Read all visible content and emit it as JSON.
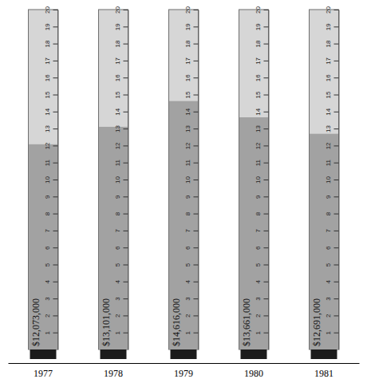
{
  "chart_data": {
    "type": "bar",
    "categories": [
      "1977",
      "1978",
      "1979",
      "1980",
      "1981"
    ],
    "values": [
      12.073,
      13.101,
      14.616,
      13.661,
      12.691
    ],
    "value_labels": [
      "$12,073,000",
      "$13,101,000",
      "$14,616,000",
      "$13,661,000",
      "$12,691,000"
    ],
    "color": "#a2a2a2",
    "ylim": [
      0,
      20
    ],
    "yticks": [
      1,
      2,
      3,
      4,
      5,
      6,
      7,
      8,
      9,
      10,
      11,
      12,
      13,
      14,
      15,
      16,
      17,
      18,
      19,
      20
    ],
    "data_labels": true
  }
}
